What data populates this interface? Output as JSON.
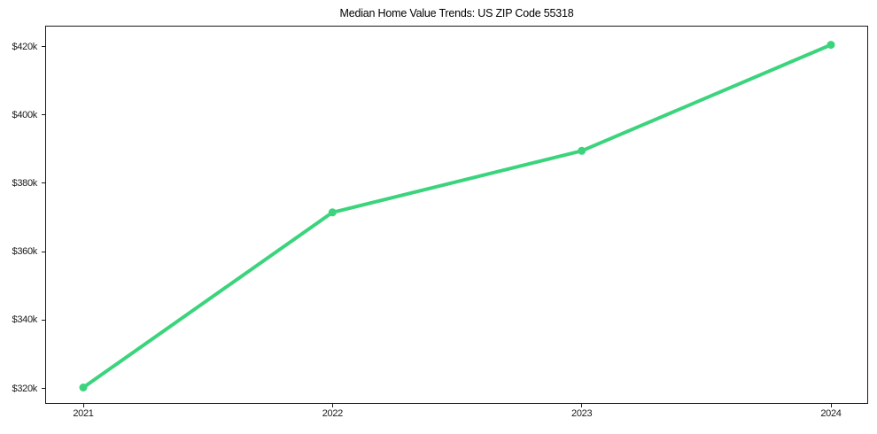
{
  "chart_data": {
    "type": "line",
    "title": "Median Home Value Trends: US ZIP Code 55318",
    "categories": [
      "2021",
      "2022",
      "2023",
      "2024"
    ],
    "series": [
      {
        "name": "Median Home Value",
        "values": [
          320300,
          371500,
          389500,
          420500
        ],
        "color": "#3bd47d",
        "marker": "circle",
        "line_width": 4
      }
    ],
    "xlabel": "",
    "ylabel": "",
    "ylim": [
      315500,
      426100
    ],
    "yticks": [
      {
        "value": 320000,
        "label": "$320k"
      },
      {
        "value": 340000,
        "label": "$340k"
      },
      {
        "value": 360000,
        "label": "$360k"
      },
      {
        "value": 380000,
        "label": "$380k"
      },
      {
        "value": 400000,
        "label": "$400k"
      },
      {
        "value": 420000,
        "label": "$420k"
      }
    ],
    "grid": false,
    "legend": "none",
    "layout": {
      "background_color": "#ffffff",
      "spine_color": "#1a1a1a",
      "tick_label_color": "#1a1a1a",
      "title_color": "#000000"
    }
  }
}
